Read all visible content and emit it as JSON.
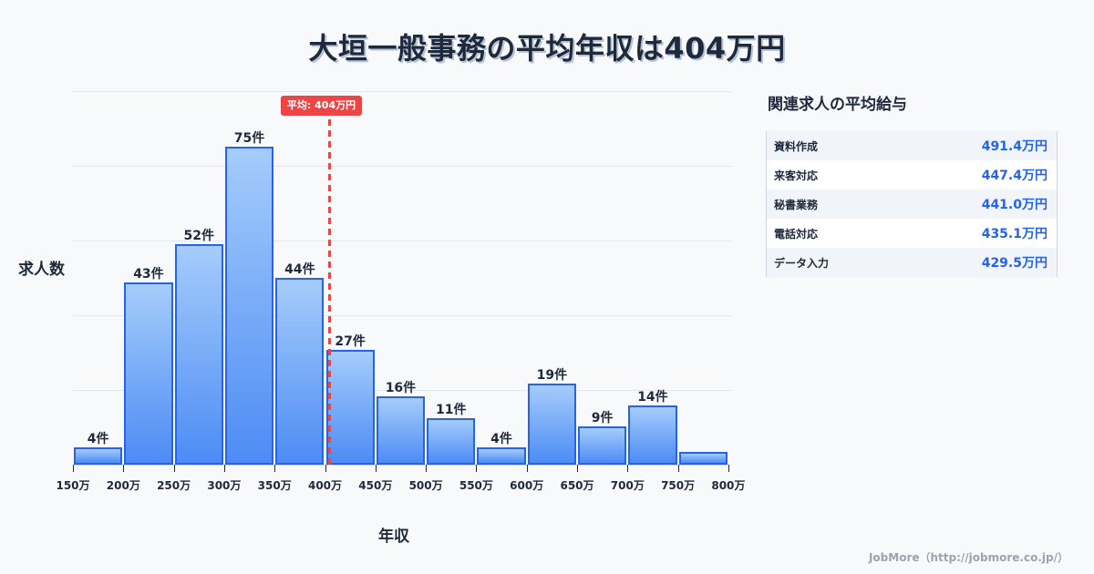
{
  "title": "大垣一般事務の平均年収は404万円",
  "chart_data": {
    "type": "bar",
    "title": "大垣一般事務の平均年収は404万円",
    "xlabel": "年収",
    "ylabel": "求人数",
    "categories": [
      "150-200万",
      "200-250万",
      "250-300万",
      "300-350万",
      "350-400万",
      "400-450万",
      "450-500万",
      "500-550万",
      "550-600万",
      "600-650万",
      "650-700万",
      "700-750万",
      "750-800万"
    ],
    "values": [
      4,
      43,
      52,
      75,
      44,
      27,
      16,
      11,
      4,
      19,
      9,
      14,
      3
    ],
    "value_labels": [
      "4件",
      "43件",
      "52件",
      "75件",
      "44件",
      "27件",
      "16件",
      "11件",
      "4件",
      "19件",
      "9件",
      "14件",
      ""
    ],
    "x_ticks": [
      "150万",
      "200万",
      "250万",
      "300万",
      "350万",
      "400万",
      "450万",
      "500万",
      "550万",
      "600万",
      "650万",
      "700万",
      "750万",
      "800万"
    ],
    "mean": 404,
    "mean_label": "平均: 404万円",
    "ylim": [
      0,
      88
    ],
    "grid": true,
    "colors": {
      "bar_fill_top": "#a5ccfb",
      "bar_fill_bottom": "#4d8cf5",
      "bar_border": "#2563eb",
      "mean_line": "#ef4444"
    }
  },
  "side_panel": {
    "title": "関連求人の平均給与",
    "rows": [
      {
        "name": "資料作成",
        "value": "491.4万円"
      },
      {
        "name": "来客対応",
        "value": "447.4万円"
      },
      {
        "name": "秘書業務",
        "value": "441.0万円"
      },
      {
        "name": "電話対応",
        "value": "435.1万円"
      },
      {
        "name": "データ入力",
        "value": "429.5万円"
      }
    ]
  },
  "footer": "JobMore（http://jobmore.co.jp/）"
}
